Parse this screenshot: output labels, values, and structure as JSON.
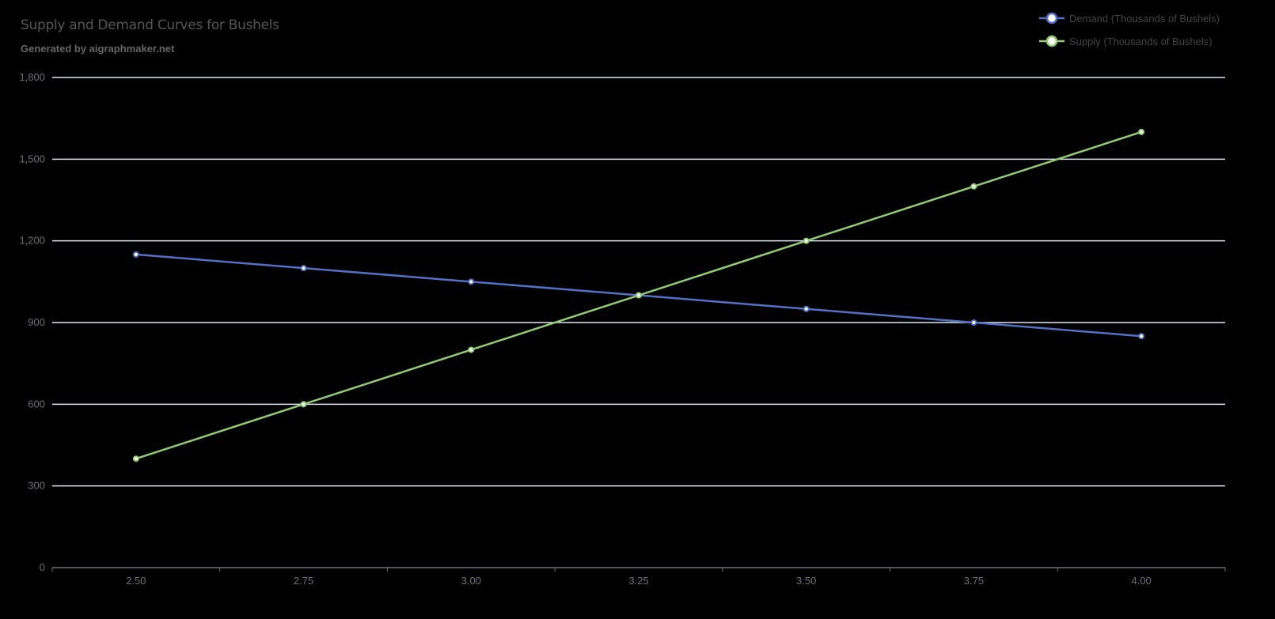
{
  "title": "Supply and Demand Curves for Bushels",
  "subtitle": "Generated by aigraphmaker.net",
  "legend": [
    {
      "label": "Demand (Thousands of Bushels)",
      "color": "#5470c6"
    },
    {
      "label": "Supply (Thousands of Bushels)",
      "color": "#91cc75"
    }
  ],
  "colors": {
    "background": "#000000",
    "gridline": "#e0e6f1",
    "axis": "#6e7079",
    "demand": "#5470c6",
    "supply": "#91cc75"
  },
  "chart_data": {
    "type": "line",
    "title": "Supply and Demand Curves for Bushels",
    "subtitle": "Generated by aigraphmaker.net",
    "xlabel": "",
    "ylabel": "",
    "categories": [
      "2.50",
      "2.75",
      "3.00",
      "3.25",
      "3.50",
      "3.75",
      "4.00"
    ],
    "series": [
      {
        "name": "Demand (Thousands of Bushels)",
        "values": [
          1150,
          1100,
          1050,
          1000,
          950,
          900,
          850
        ],
        "color": "#5470c6"
      },
      {
        "name": "Supply (Thousands of Bushels)",
        "values": [
          400,
          600,
          800,
          1000,
          1200,
          1400,
          1600
        ],
        "color": "#91cc75"
      }
    ],
    "ylim": [
      0,
      1800
    ],
    "yticks": [
      0,
      300,
      600,
      900,
      1200,
      1500,
      1800
    ],
    "ytick_labels": [
      "0",
      "300",
      "600",
      "900",
      "1,200",
      "1,500",
      "1,800"
    ],
    "grid": true,
    "legend_position": "top-right"
  }
}
